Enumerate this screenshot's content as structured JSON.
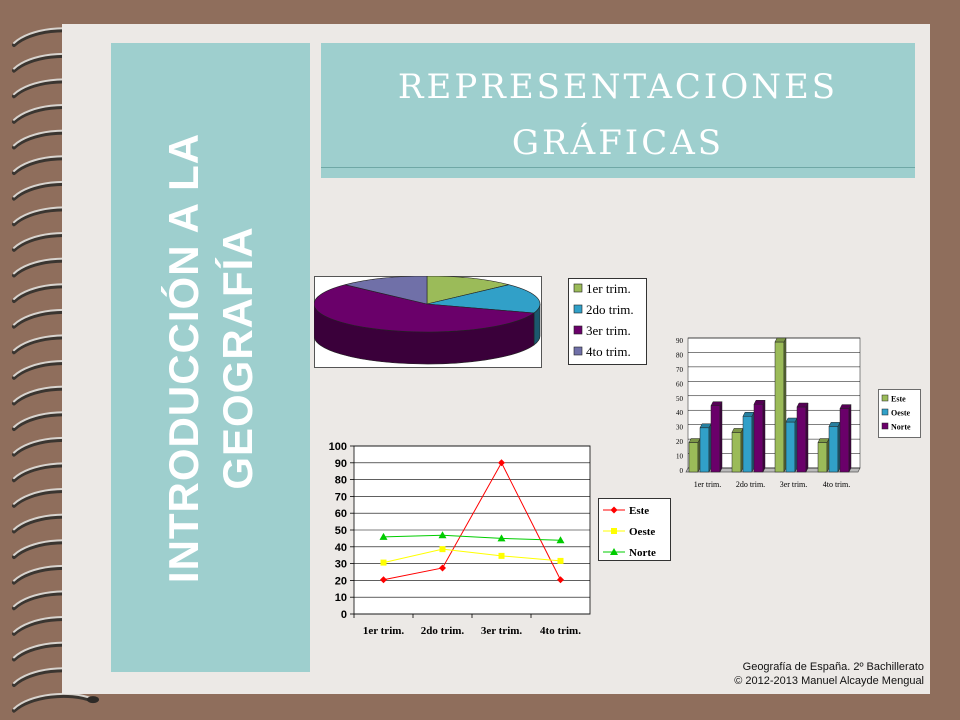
{
  "slide": {
    "sidebar_title_line1": "INTRODUCCIÓN A LA",
    "sidebar_title_line2": "GEOGRAFÍA",
    "header_title_line1": "REPRESENTACIONES",
    "header_title_line2": "GRÁFICAS",
    "footer_line1": "Geografía de España. 2º Bachillerato",
    "footer_line2": "© 2012-2013 Manuel Alcayde Mengual"
  },
  "colors": {
    "panel": "#9ecfce",
    "background": "#8f6e5c",
    "slide": "#ece9e6",
    "este_line": "#ff0000",
    "oeste_line": "#ffff00",
    "norte_line": "#00cc00"
  },
  "chart_data": [
    {
      "type": "pie",
      "labels": [
        "1er trim.",
        "2do trim.",
        "3er trim.",
        "4to trim."
      ],
      "values": [
        20.4,
        27.4,
        90,
        20.4
      ],
      "colors": [
        "#9bbb59",
        "#31a0c8",
        "#6a006a",
        "#7070a8"
      ],
      "legend": "right"
    },
    {
      "type": "bar",
      "categories": [
        "1er trim.",
        "2do trim.",
        "3er trim.",
        "4to trim."
      ],
      "series": [
        {
          "name": "Este",
          "values": [
            20.4,
            27.4,
            90,
            20.4
          ],
          "color": "#9bbb59"
        },
        {
          "name": "Oeste",
          "values": [
            30.6,
            38.6,
            34.6,
            31.6
          ],
          "color": "#31a0c8"
        },
        {
          "name": "Norte",
          "values": [
            45.9,
            46.9,
            45,
            43.9
          ],
          "color": "#6a006a"
        }
      ],
      "ylim": [
        0,
        90
      ],
      "yticks": [
        0,
        10,
        20,
        30,
        40,
        50,
        60,
        70,
        80,
        90
      ],
      "grid": true,
      "legend": "right"
    },
    {
      "type": "line",
      "categories": [
        "1er trim.",
        "2do trim.",
        "3er trim.",
        "4to trim."
      ],
      "series": [
        {
          "name": "Este",
          "values": [
            20.4,
            27.4,
            90,
            20.4
          ],
          "color": "#ff0000",
          "marker": "diamond"
        },
        {
          "name": "Oeste",
          "values": [
            30.6,
            38.6,
            34.6,
            31.6
          ],
          "color": "#ffff00",
          "marker": "square"
        },
        {
          "name": "Norte",
          "values": [
            45.9,
            46.9,
            45,
            43.9
          ],
          "color": "#00cc00",
          "marker": "triangle"
        }
      ],
      "ylim": [
        0,
        100
      ],
      "yticks": [
        0,
        10,
        20,
        30,
        40,
        50,
        60,
        70,
        80,
        90,
        100
      ],
      "grid": true,
      "legend": "right"
    }
  ]
}
